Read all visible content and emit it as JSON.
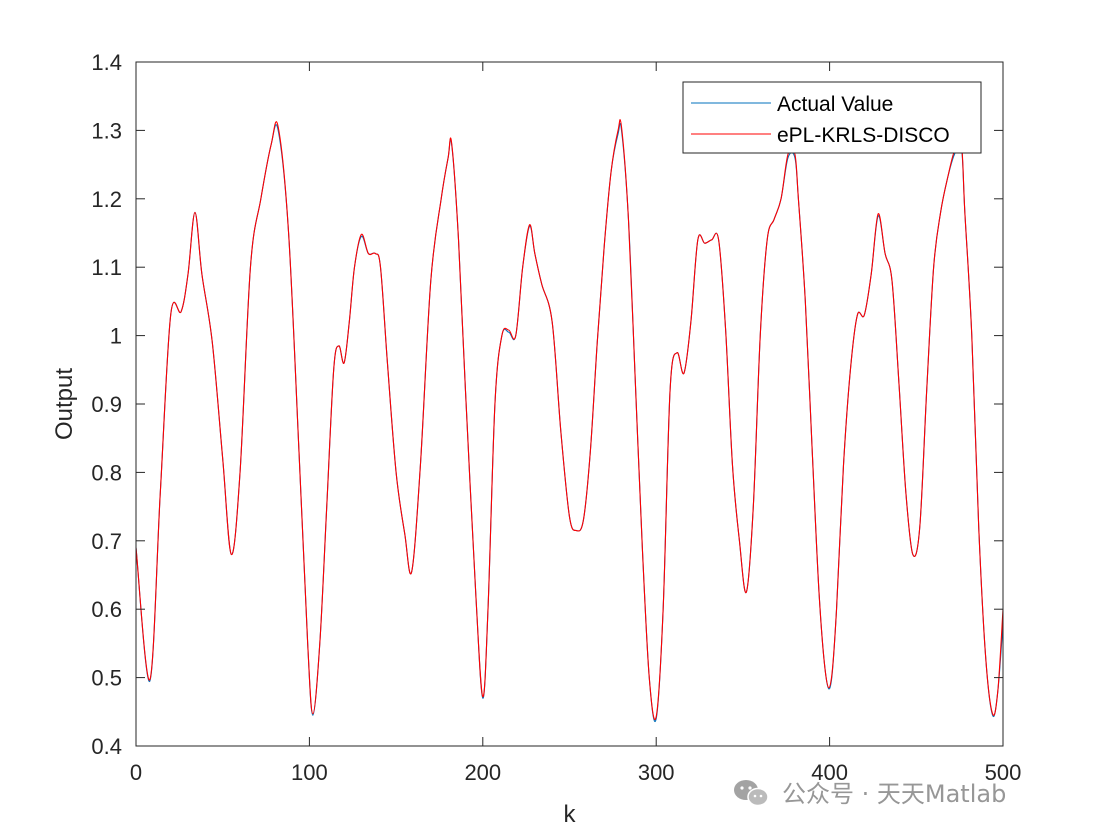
{
  "watermark": {
    "text": "公众号 · 天天Matlab"
  },
  "chart_data": {
    "type": "line",
    "title": "",
    "xlabel": "k",
    "ylabel": "Output",
    "xlim": [
      0,
      500
    ],
    "ylim": [
      0.4,
      1.4
    ],
    "xticks": [
      "0",
      "100",
      "200",
      "300",
      "400",
      "500"
    ],
    "yticks": [
      "0.4",
      "0.5",
      "0.6",
      "0.7",
      "0.8",
      "0.9",
      "1",
      "1.1",
      "1.2",
      "1.3",
      "1.4"
    ],
    "grid": false,
    "legend_position": "top-right",
    "series": [
      {
        "name": "Actual Value",
        "color": "#0072BD"
      },
      {
        "name": "ePL-KRLS-DISCO",
        "color": "#FF0000"
      }
    ],
    "x": [
      0,
      8,
      14,
      20,
      26,
      30,
      34,
      38,
      44,
      50,
      55,
      60,
      66,
      72,
      78,
      82,
      88,
      94,
      99,
      102,
      106,
      110,
      114,
      117,
      120,
      123,
      126,
      130,
      134,
      138,
      141,
      145,
      150,
      155,
      159,
      164,
      170,
      176,
      180,
      182,
      186,
      190,
      196,
      200,
      203,
      207,
      211,
      215,
      219,
      223,
      227,
      230,
      234,
      240,
      245,
      250,
      254,
      258,
      262,
      266,
      270,
      274,
      278,
      280,
      284,
      288,
      292,
      296,
      300,
      304,
      308,
      312,
      316,
      320,
      324,
      328,
      332,
      336,
      340,
      344,
      348,
      352,
      356,
      360,
      364,
      368,
      372,
      376,
      380,
      382,
      386,
      390,
      394,
      398,
      401,
      404,
      408,
      412,
      416,
      420,
      424,
      428,
      432,
      436,
      440,
      444,
      448,
      452,
      456,
      460,
      464,
      468,
      472,
      476,
      478,
      482,
      486,
      490,
      494,
      497,
      500
    ],
    "y_actual": [
      0.69,
      0.495,
      0.77,
      1.03,
      1.035,
      1.09,
      1.18,
      1.09,
      0.99,
      0.82,
      0.68,
      0.8,
      1.1,
      1.2,
      1.28,
      1.3,
      1.15,
      0.83,
      0.55,
      0.445,
      0.55,
      0.75,
      0.95,
      0.985,
      0.96,
      1.02,
      1.1,
      1.145,
      1.12,
      1.12,
      1.1,
      0.96,
      0.8,
      0.71,
      0.655,
      0.81,
      1.08,
      1.2,
      1.26,
      1.28,
      1.14,
      0.92,
      0.62,
      0.47,
      0.6,
      0.9,
      1.0,
      1.005,
      1.0,
      1.1,
      1.16,
      1.12,
      1.075,
      1.02,
      0.86,
      0.735,
      0.715,
      0.73,
      0.83,
      0.99,
      1.13,
      1.24,
      1.295,
      1.3,
      1.17,
      0.93,
      0.69,
      0.5,
      0.44,
      0.6,
      0.92,
      0.975,
      0.945,
      1.02,
      1.14,
      1.135,
      1.14,
      1.14,
      1.01,
      0.81,
      0.7,
      0.625,
      0.75,
      1.0,
      1.14,
      1.17,
      1.2,
      1.26,
      1.26,
      1.2,
      1.05,
      0.83,
      0.62,
      0.5,
      0.495,
      0.6,
      0.81,
      0.95,
      1.03,
      1.03,
      1.09,
      1.175,
      1.12,
      1.08,
      0.93,
      0.77,
      0.68,
      0.72,
      0.92,
      1.1,
      1.18,
      1.23,
      1.265,
      1.275,
      1.18,
      1.0,
      0.72,
      0.53,
      0.445,
      0.48,
      0.58
    ],
    "y_predicted": [
      0.69,
      0.497,
      0.77,
      1.03,
      1.035,
      1.09,
      1.18,
      1.09,
      0.99,
      0.82,
      0.68,
      0.8,
      1.1,
      1.2,
      1.28,
      1.305,
      1.15,
      0.83,
      0.55,
      0.447,
      0.55,
      0.75,
      0.95,
      0.985,
      0.96,
      1.02,
      1.1,
      1.148,
      1.12,
      1.12,
      1.1,
      0.96,
      0.8,
      0.71,
      0.655,
      0.81,
      1.08,
      1.2,
      1.26,
      1.282,
      1.14,
      0.92,
      0.62,
      0.472,
      0.6,
      0.9,
      1.0,
      1.008,
      1.0,
      1.1,
      1.162,
      1.12,
      1.075,
      1.02,
      0.86,
      0.735,
      0.715,
      0.73,
      0.83,
      0.99,
      1.13,
      1.24,
      1.3,
      1.305,
      1.17,
      0.93,
      0.69,
      0.5,
      0.443,
      0.6,
      0.92,
      0.975,
      0.945,
      1.02,
      1.14,
      1.135,
      1.14,
      1.14,
      1.01,
      0.81,
      0.7,
      0.625,
      0.75,
      1.0,
      1.14,
      1.17,
      1.2,
      1.265,
      1.265,
      1.2,
      1.05,
      0.83,
      0.62,
      0.5,
      0.498,
      0.6,
      0.81,
      0.95,
      1.03,
      1.03,
      1.09,
      1.178,
      1.12,
      1.08,
      0.93,
      0.77,
      0.68,
      0.72,
      0.92,
      1.1,
      1.18,
      1.23,
      1.27,
      1.28,
      1.18,
      1.0,
      0.72,
      0.53,
      0.447,
      0.48,
      0.6
    ]
  }
}
